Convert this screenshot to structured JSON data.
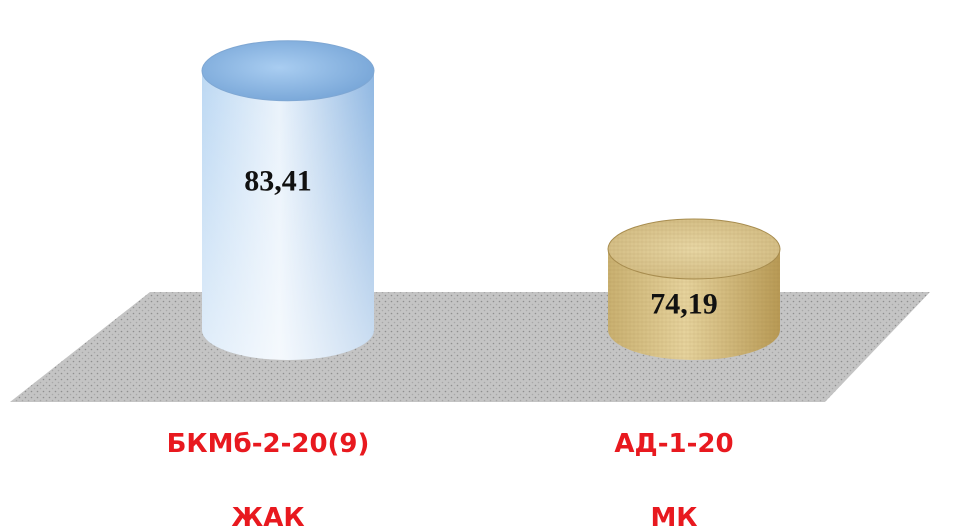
{
  "chart_data": {
    "type": "bar",
    "style": "3d-cylinder",
    "categories": [
      "БКМб-2-20(9)",
      "АД-1-20"
    ],
    "subcategories": [
      "ЖАК",
      "МК"
    ],
    "values": [
      83.41,
      74.19
    ],
    "value_labels": [
      "83,41",
      "74,19"
    ],
    "ylim": [
      70,
      85
    ],
    "grid": false,
    "legend": "none",
    "title": "",
    "xlabel": "",
    "ylabel": ""
  },
  "colors": {
    "bar_1": "#9cc3ea",
    "bar_2": "#d6c187",
    "floor": "#bdbdbd",
    "label": "#e8191f"
  }
}
